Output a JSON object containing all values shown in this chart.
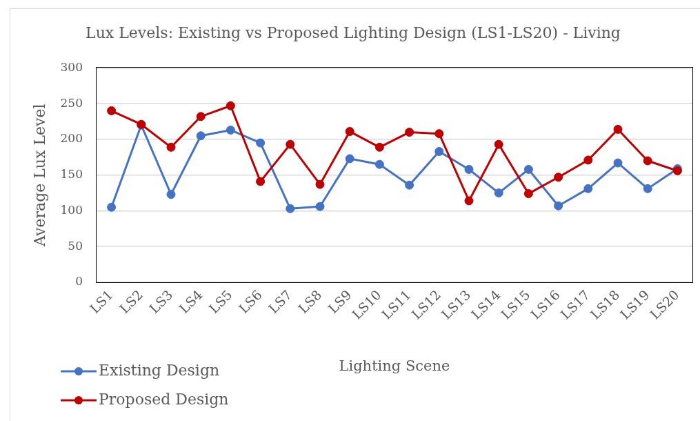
{
  "chart_data": {
    "type": "line",
    "title": "Lux Levels: Existing vs Proposed Lighting Design (LS1-LS20) - Living",
    "xlabel": "Lighting Scene",
    "ylabel": "Average Lux Level",
    "categories": [
      "LS1",
      "LS2",
      "LS3",
      "LS4",
      "LS5",
      "LS6",
      "LS7",
      "LS8",
      "LS9",
      "LS10",
      "LS11",
      "LS12",
      "LS13",
      "LS14",
      "LS15",
      "LS16",
      "LS17",
      "LS18",
      "LS19",
      "LS20"
    ],
    "series": [
      {
        "name": "Existing Design",
        "color": "#4472c4",
        "values": [
          105,
          220,
          123,
          205,
          213,
          195,
          103,
          106,
          173,
          165,
          136,
          183,
          158,
          125,
          158,
          107,
          131,
          167,
          131,
          159
        ]
      },
      {
        "name": "Proposed Design",
        "color": "#c00000",
        "values": [
          240,
          221,
          189,
          232,
          247,
          141,
          193,
          137,
          211,
          189,
          210,
          208,
          114,
          193,
          124,
          147,
          171,
          214,
          170,
          156
        ]
      }
    ],
    "ylim": [
      0,
      300
    ],
    "yticks": [
      0,
      50,
      100,
      150,
      200,
      250,
      300
    ],
    "grid": "y",
    "legend": "bottom left",
    "marker": "circle",
    "line_style": "solid"
  }
}
